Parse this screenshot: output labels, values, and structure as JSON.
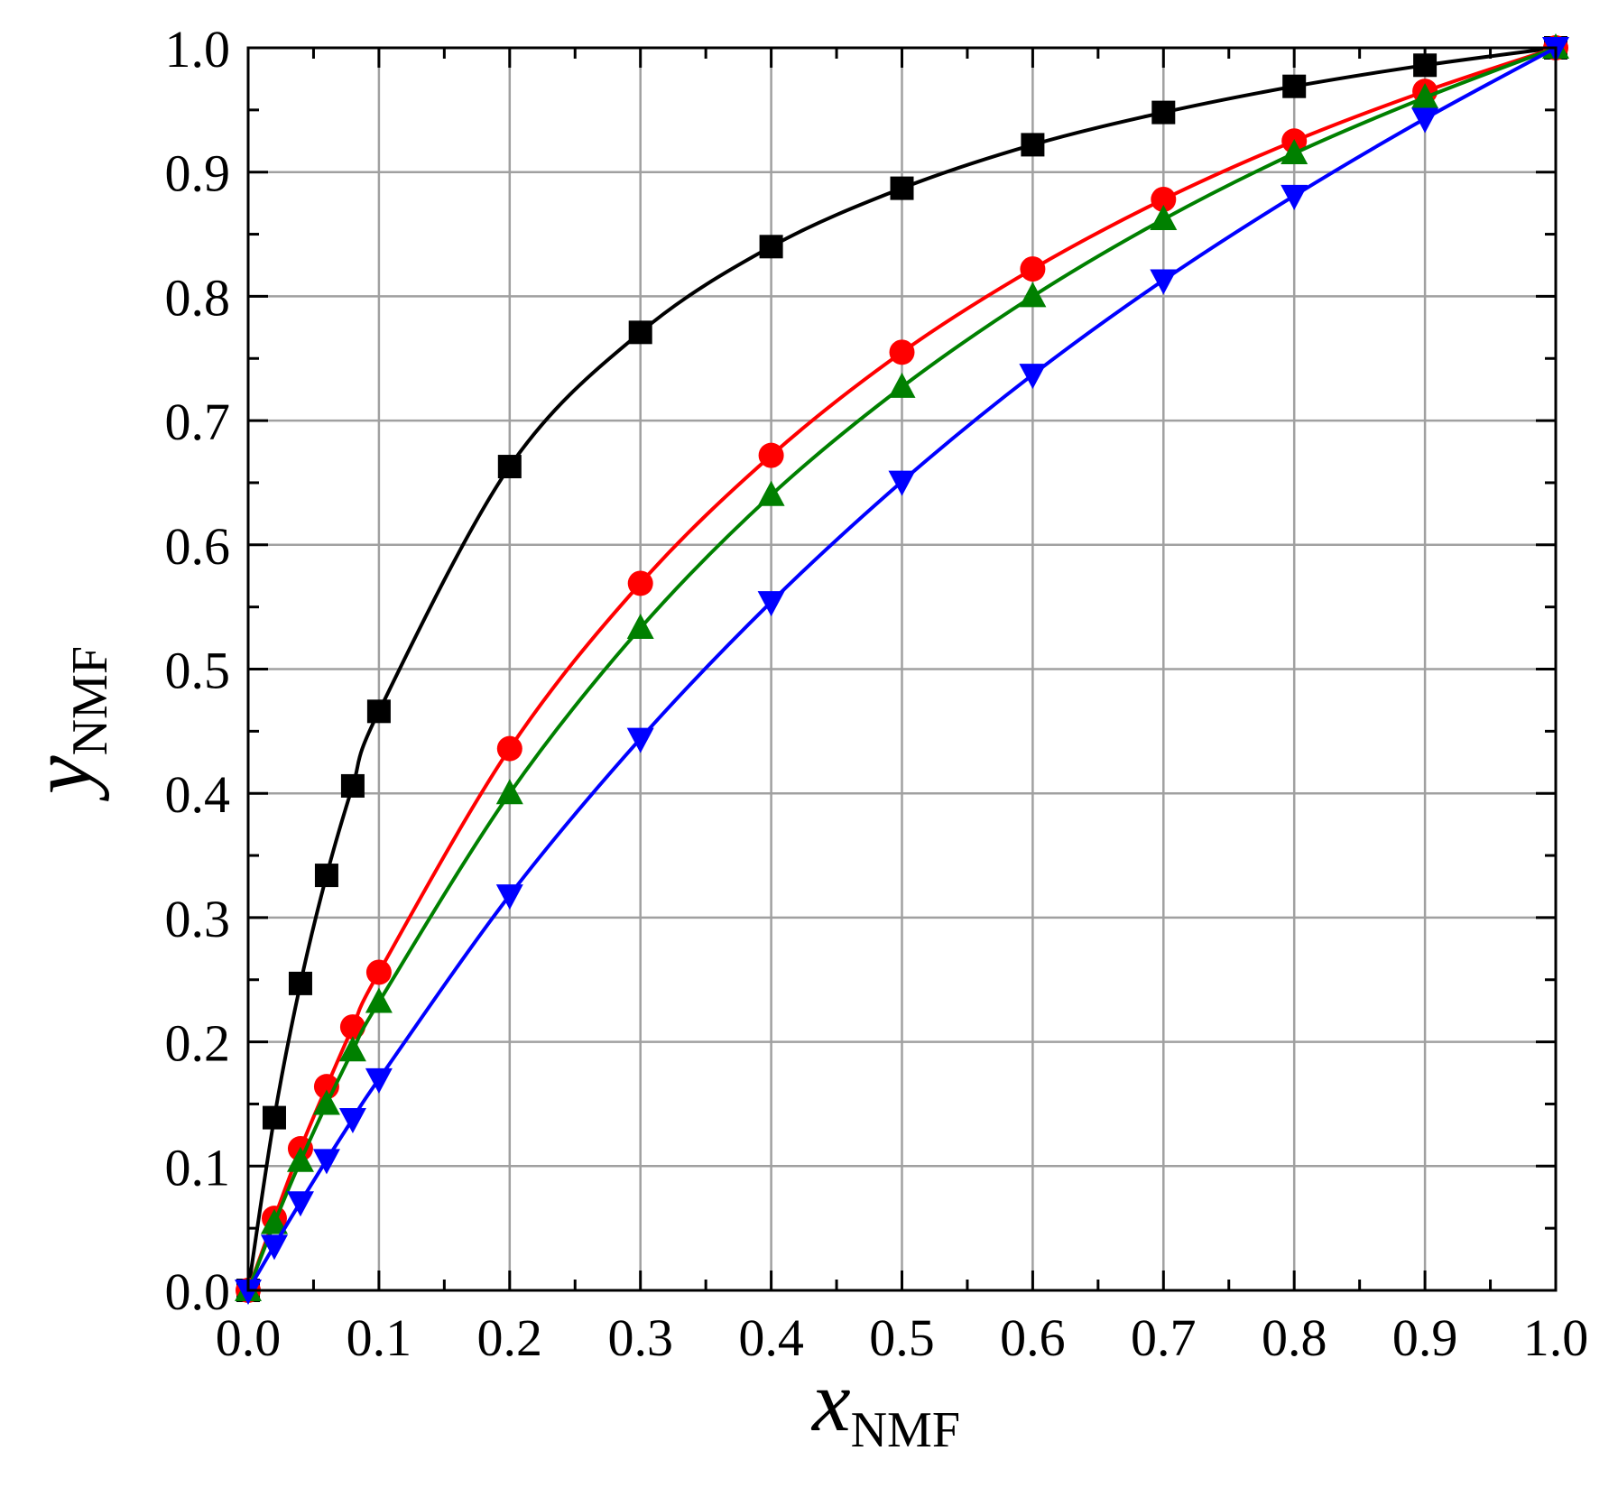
{
  "chart_data": {
    "type": "line",
    "title": "",
    "xlabel": {
      "var": "x",
      "sub": "NMF"
    },
    "ylabel": {
      "var": "y",
      "sub": "NMF"
    },
    "xlim": [
      0.0,
      1.0
    ],
    "ylim": [
      0.0,
      1.0
    ],
    "grid": true,
    "legend": "none",
    "x_ticks": [
      "0.0",
      "0.1",
      "0.2",
      "0.3",
      "0.4",
      "0.5",
      "0.6",
      "0.7",
      "0.8",
      "0.9",
      "1.0"
    ],
    "y_ticks": [
      "0.0",
      "0.1",
      "0.2",
      "0.3",
      "0.4",
      "0.5",
      "0.6",
      "0.7",
      "0.8",
      "0.9",
      "1.0"
    ],
    "series": [
      {
        "color": "#000000",
        "marker": "square",
        "x": [
          0.0,
          0.02,
          0.04,
          0.06,
          0.08,
          0.1,
          0.2,
          0.3,
          0.4,
          0.5,
          0.6,
          0.7,
          0.8,
          0.9,
          1.0
        ],
        "y": [
          0.0,
          0.139,
          0.247,
          0.334,
          0.406,
          0.466,
          0.663,
          0.771,
          0.84,
          0.887,
          0.922,
          0.948,
          0.969,
          0.986,
          1.0
        ]
      },
      {
        "color": "#ff0000",
        "marker": "circle",
        "x": [
          0.0,
          0.02,
          0.04,
          0.06,
          0.08,
          0.1,
          0.2,
          0.3,
          0.4,
          0.5,
          0.6,
          0.7,
          0.8,
          0.9,
          1.0
        ],
        "y": [
          0.0,
          0.058,
          0.114,
          0.164,
          0.212,
          0.256,
          0.436,
          0.569,
          0.672,
          0.755,
          0.822,
          0.878,
          0.925,
          0.965,
          1.0
        ]
      },
      {
        "color": "#008000",
        "marker": "triangle-up",
        "x": [
          0.0,
          0.02,
          0.04,
          0.06,
          0.08,
          0.1,
          0.2,
          0.3,
          0.4,
          0.5,
          0.6,
          0.7,
          0.8,
          0.9,
          1.0
        ],
        "y": [
          0.0,
          0.054,
          0.104,
          0.15,
          0.193,
          0.232,
          0.4,
          0.533,
          0.64,
          0.727,
          0.8,
          0.862,
          0.915,
          0.96,
          1.0
        ]
      },
      {
        "color": "#0000ff",
        "marker": "triangle-down",
        "x": [
          0.0,
          0.02,
          0.04,
          0.06,
          0.08,
          0.1,
          0.2,
          0.3,
          0.4,
          0.5,
          0.6,
          0.7,
          0.8,
          0.9,
          1.0
        ],
        "y": [
          0.0,
          0.036,
          0.071,
          0.105,
          0.138,
          0.17,
          0.318,
          0.444,
          0.554,
          0.651,
          0.737,
          0.813,
          0.881,
          0.943,
          1.0
        ]
      }
    ]
  }
}
